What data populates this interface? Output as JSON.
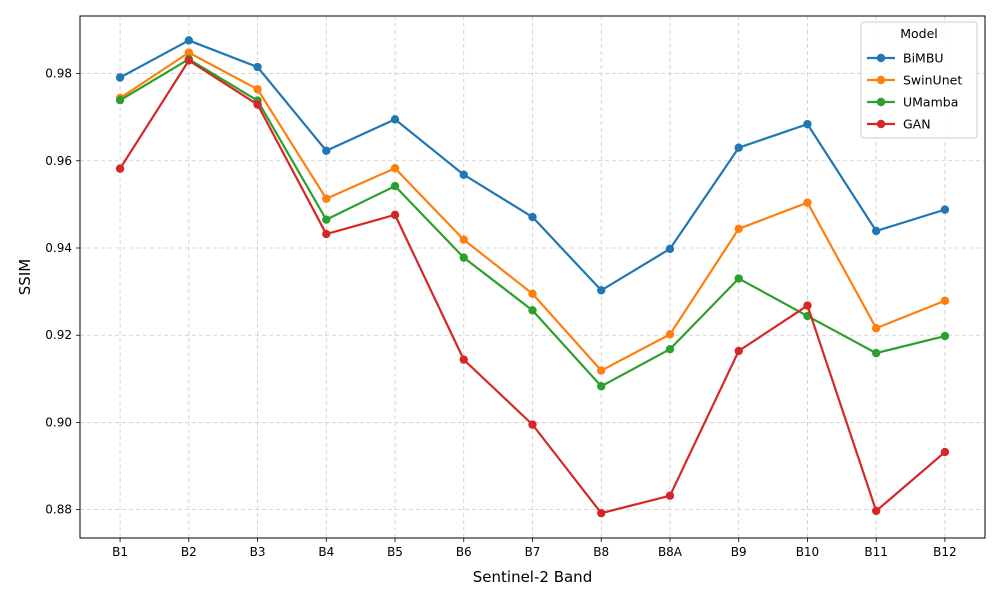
{
  "chart_data": {
    "type": "line",
    "title": "",
    "xlabel": "Sentinel-2 Band",
    "ylabel": "SSIM",
    "categories": [
      "B1",
      "B2",
      "B3",
      "B4",
      "B5",
      "B6",
      "B7",
      "B8",
      "B8A",
      "B9",
      "B10",
      "B11",
      "B12"
    ],
    "ylim": [
      0.8735,
      0.9932
    ],
    "yticks": [
      0.88,
      0.9,
      0.92,
      0.94,
      0.96,
      0.98
    ],
    "ytick_labels": [
      "0.88",
      "0.90",
      "0.92",
      "0.94",
      "0.96",
      "0.98"
    ],
    "grid": true,
    "legend": {
      "title": "Model",
      "placement": "top-right"
    },
    "series": [
      {
        "name": "BiMBU",
        "color": "#1f77b4",
        "values": [
          0.9791,
          0.9876,
          0.9815,
          0.9623,
          0.9695,
          0.9568,
          0.9471,
          0.9303,
          0.9398,
          0.963,
          0.9684,
          0.9439,
          0.9488
        ]
      },
      {
        "name": "SwinUnet",
        "color": "#ff7f0e",
        "values": [
          0.9744,
          0.9848,
          0.9764,
          0.9513,
          0.9583,
          0.9419,
          0.9295,
          0.9119,
          0.9202,
          0.9444,
          0.9504,
          0.9216,
          0.9279
        ]
      },
      {
        "name": "UMamba",
        "color": "#2ca02c",
        "values": [
          0.9739,
          0.9833,
          0.9738,
          0.9465,
          0.9542,
          0.9378,
          0.9257,
          0.9083,
          0.9168,
          0.933,
          0.9244,
          0.9159,
          0.9198
        ]
      },
      {
        "name": "GAN",
        "color": "#d62728",
        "values": [
          0.9582,
          0.983,
          0.9729,
          0.9432,
          0.9476,
          0.9144,
          0.8995,
          0.8792,
          0.8832,
          0.9164,
          0.9268,
          0.8797,
          0.8932
        ]
      }
    ]
  }
}
